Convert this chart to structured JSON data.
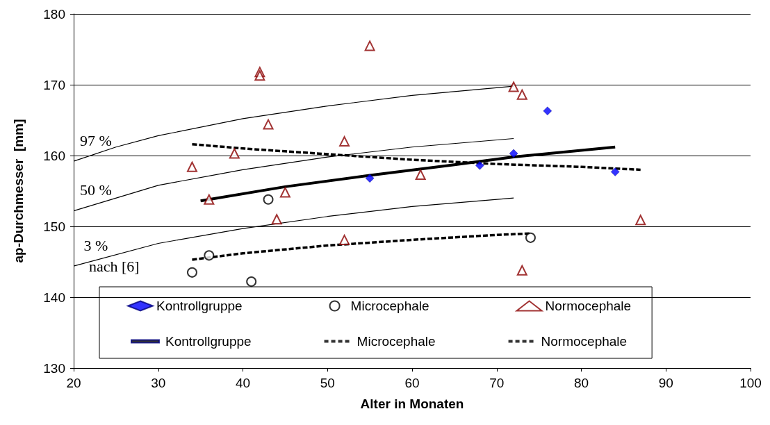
{
  "chart_data": {
    "type": "scatter",
    "xlabel": "Alter in Monaten",
    "ylabel": "ap-Durchmesser  [mm]",
    "xlim": [
      20,
      100
    ],
    "ylim": [
      130,
      180
    ],
    "xticks": [
      20,
      30,
      40,
      50,
      60,
      70,
      80,
      90,
      100
    ],
    "yticks": [
      130,
      140,
      150,
      160,
      170,
      180
    ],
    "grid": "y",
    "legend": "bottom",
    "annotations": [
      "nach [6]"
    ],
    "series": [
      {
        "name": "Kontrollgruppe",
        "marker": "diamond",
        "color": "#0000ff",
        "x": [
          55,
          68,
          72,
          76,
          84
        ],
        "values": [
          156.8,
          158.6,
          160.3,
          166.3,
          157.7
        ]
      },
      {
        "name": "Microcephale",
        "marker": "circle",
        "color": "#000000",
        "x": [
          34,
          36,
          41,
          43,
          74
        ],
        "values": [
          143.5,
          145.9,
          142.2,
          153.8,
          148.4
        ]
      },
      {
        "name": "Normocephale",
        "marker": "triangle",
        "color": "#8b0000",
        "x": [
          55,
          42,
          42,
          43,
          52,
          39,
          34,
          36,
          45,
          44,
          52,
          72,
          73,
          61,
          87,
          73
        ],
        "values": [
          175.5,
          171.8,
          171.3,
          164.4,
          162.0,
          160.3,
          158.4,
          153.8,
          154.8,
          151.0,
          148.1,
          169.7,
          168.6,
          157.3,
          150.9,
          143.8
        ]
      },
      {
        "name": "Kontrollgruppe",
        "type": "line",
        "marker": "none",
        "line_style": "solid",
        "color": "#000000",
        "x": [
          35,
          45,
          55,
          65,
          72,
          84
        ],
        "values": [
          153.6,
          155.6,
          157.2,
          158.7,
          159.8,
          161.2
        ]
      },
      {
        "name": "Microcephale",
        "type": "line",
        "marker": "none",
        "line_style": "dashed",
        "color": "#000000",
        "x": [
          34,
          40,
          50,
          60,
          70,
          74
        ],
        "values": [
          145.3,
          146.2,
          147.3,
          148.1,
          148.8,
          149.0
        ]
      },
      {
        "name": "Normocephale",
        "type": "line",
        "marker": "none",
        "line_style": "dashed",
        "color": "#000000",
        "x": [
          34,
          40,
          50,
          60,
          70,
          80,
          87
        ],
        "values": [
          161.6,
          161.0,
          160.2,
          159.4,
          158.8,
          158.4,
          158.0
        ]
      },
      {
        "name": "97 %",
        "type": "line",
        "marker": "none",
        "line_style": "solid",
        "color": "#000000",
        "x": [
          20,
          25,
          30,
          40,
          50,
          60,
          72
        ],
        "values": [
          159.2,
          161.2,
          162.8,
          165.2,
          167.0,
          168.5,
          169.8
        ]
      },
      {
        "name": "50 %",
        "type": "line",
        "marker": "none",
        "line_style": "solid",
        "color": "#000000",
        "x": [
          20,
          30,
          40,
          50,
          60,
          72
        ],
        "values": [
          152.2,
          155.8,
          158.0,
          159.8,
          161.2,
          162.4
        ]
      },
      {
        "name": "3 %",
        "type": "line",
        "marker": "none",
        "line_style": "solid",
        "color": "#000000",
        "x": [
          20,
          30,
          40,
          50,
          60,
          72
        ],
        "values": [
          144.4,
          147.6,
          149.7,
          151.4,
          152.8,
          154.0
        ]
      }
    ]
  }
}
